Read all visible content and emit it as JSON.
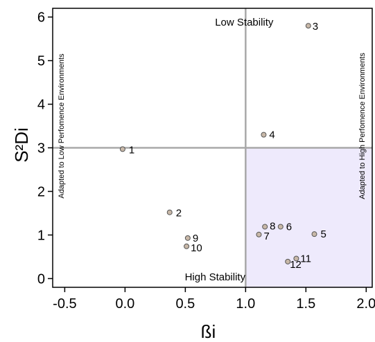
{
  "chart_data": {
    "type": "scatter",
    "xlabel": "ßi",
    "ylabel": "S²Di",
    "xlim": [
      -0.6,
      2.05
    ],
    "ylim": [
      -0.2,
      6.2
    ],
    "x_ticks": [
      "-0.5",
      "0.0",
      "0.5",
      "1.0",
      "1.5",
      "2.0"
    ],
    "x_tick_values": [
      -0.5,
      0.0,
      0.5,
      1.0,
      1.5,
      2.0
    ],
    "y_ticks": [
      "0",
      "1",
      "2",
      "3",
      "4",
      "5",
      "6"
    ],
    "y_tick_values": [
      0,
      1,
      2,
      3,
      4,
      5,
      6
    ],
    "reference_lines": {
      "x": 1.0,
      "y": 3.0
    },
    "highlight_quadrant": {
      "x_from": 1.0,
      "y_to": 3.0,
      "color": "#eeeafc"
    },
    "grid": false,
    "annotations": {
      "top": "Low Stability",
      "bottom": "High Stability",
      "left": "Adapted to Low Perfomence Environments",
      "right": "Adapted to High Perfomence Environments"
    },
    "points": [
      {
        "label": "1",
        "x": -0.02,
        "y": 2.97
      },
      {
        "label": "2",
        "x": 0.37,
        "y": 1.52
      },
      {
        "label": "3",
        "x": 1.52,
        "y": 5.8
      },
      {
        "label": "4",
        "x": 1.15,
        "y": 3.3
      },
      {
        "label": "5",
        "x": 1.57,
        "y": 1.02
      },
      {
        "label": "6",
        "x": 1.29,
        "y": 1.19
      },
      {
        "label": "7",
        "x": 1.11,
        "y": 1.01
      },
      {
        "label": "8",
        "x": 1.16,
        "y": 1.19
      },
      {
        "label": "9",
        "x": 0.52,
        "y": 0.93
      },
      {
        "label": "10",
        "x": 0.51,
        "y": 0.74
      },
      {
        "label": "11",
        "x": 1.42,
        "y": 0.46
      },
      {
        "label": "12",
        "x": 1.35,
        "y": 0.39
      }
    ],
    "colors": {
      "marker_fill": "#c8b8a8",
      "marker_stroke": "#555555",
      "ref_line": "#a8a8a8"
    }
  }
}
